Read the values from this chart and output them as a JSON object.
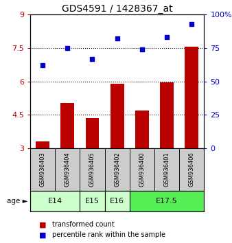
{
  "title": "GDS4591 / 1428367_at",
  "samples": [
    "GSM936403",
    "GSM936404",
    "GSM936405",
    "GSM936402",
    "GSM936400",
    "GSM936401",
    "GSM936406"
  ],
  "bar_values": [
    3.3,
    5.05,
    4.35,
    5.9,
    4.7,
    5.95,
    7.55
  ],
  "scatter_values": [
    62,
    75,
    67,
    82,
    74,
    83,
    93
  ],
  "bar_color": "#bb0000",
  "scatter_color": "#0000cc",
  "ylim_left": [
    3.0,
    9.0
  ],
  "ylim_right": [
    0,
    100
  ],
  "yticks_left": [
    3.0,
    4.5,
    6.0,
    7.5,
    9.0
  ],
  "ytick_labels_left": [
    "3",
    "4.5",
    "6",
    "7.5",
    "9"
  ],
  "yticks_right": [
    0,
    25,
    50,
    75,
    100
  ],
  "ytick_labels_right": [
    "0",
    "25",
    "50",
    "75",
    "100%"
  ],
  "hlines": [
    4.5,
    6.0,
    7.5
  ],
  "age_group_data": [
    {
      "label": "E14",
      "indices": [
        0,
        1
      ],
      "color": "#ccffcc"
    },
    {
      "label": "E15",
      "indices": [
        2
      ],
      "color": "#ccffcc"
    },
    {
      "label": "E16",
      "indices": [
        3
      ],
      "color": "#ccffcc"
    },
    {
      "label": "E17.5",
      "indices": [
        4,
        5,
        6
      ],
      "color": "#55ee55"
    }
  ],
  "legend_bar_label": "transformed count",
  "legend_scatter_label": "percentile rank within the sample",
  "sample_cell_color": "#cccccc",
  "figsize": [
    3.38,
    3.54
  ],
  "dpi": 100
}
